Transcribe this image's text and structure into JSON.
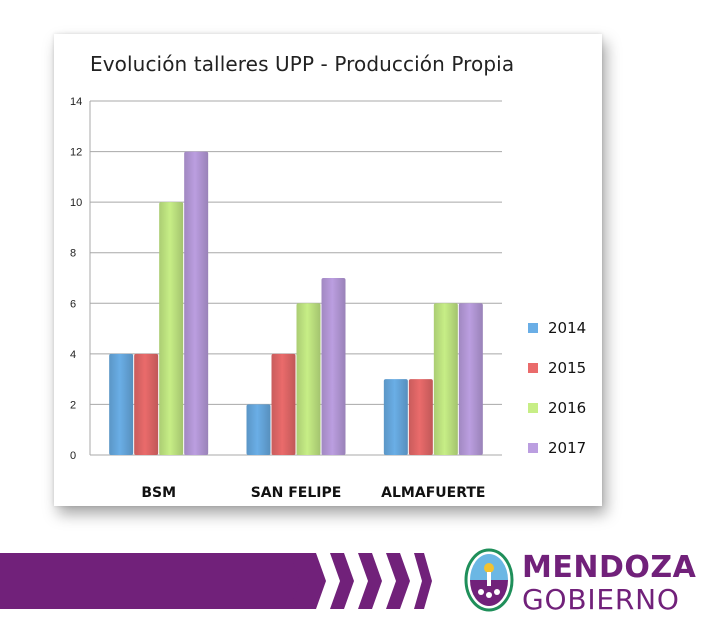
{
  "chart_data": {
    "type": "bar",
    "title": "Evolución talleres UPP - Producción Propia",
    "categories": [
      "BSM",
      "SAN FELIPE",
      "ALMAFUERTE"
    ],
    "series": [
      {
        "name": "2014",
        "values": [
          4,
          2,
          3
        ],
        "color": "#6aaee6"
      },
      {
        "name": "2015",
        "values": [
          4,
          4,
          3
        ],
        "color": "#ea6b6b"
      },
      {
        "name": "2016",
        "values": [
          10,
          6,
          6
        ],
        "color": "#c7ee86"
      },
      {
        "name": "2017",
        "values": [
          12,
          7,
          6
        ],
        "color": "#bb9ee0"
      }
    ],
    "ylim": [
      0,
      14
    ],
    "yticks": [
      "0",
      "2",
      "4",
      "6",
      "8",
      "10",
      "12",
      "14"
    ],
    "grid": true,
    "legend_position": "right"
  },
  "footer": {
    "brand_line1": "MENDOZA",
    "brand_line2": "GOBIERNO",
    "brand_color": "#71217a"
  }
}
